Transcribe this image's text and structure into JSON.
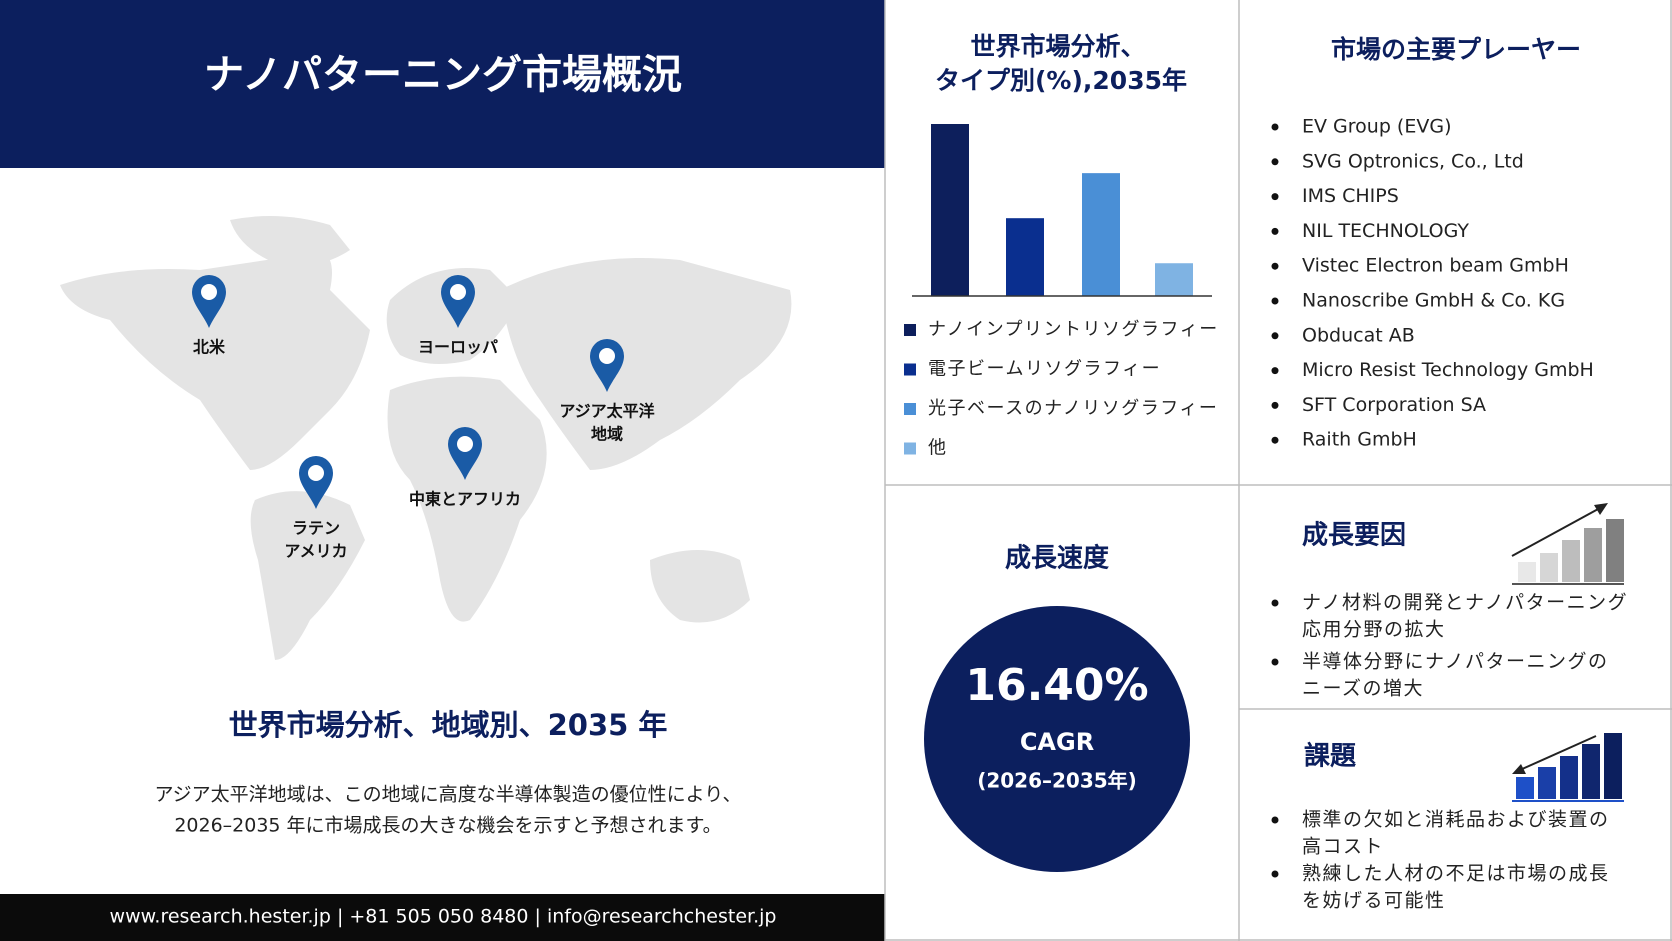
{
  "header": {
    "title": "ナノパターニング市場概況"
  },
  "map": {
    "regions": [
      {
        "lines": [
          "北米"
        ]
      },
      {
        "lines": [
          "ヨーロッパ"
        ]
      },
      {
        "lines": [
          "アジア太平洋",
          "地域"
        ]
      },
      {
        "lines": [
          "中東とアフリカ"
        ]
      },
      {
        "lines": [
          "ラテン",
          "アメリカ"
        ]
      }
    ]
  },
  "regional": {
    "title": "世界市場分析、地域別、2035 年",
    "description": [
      "アジア太平洋地域は、この地域に高度な半導体製造の優位性により、",
      "2026–2035 年に市場成長の大きな機会を示すと予想されます。"
    ]
  },
  "footer": {
    "text": "www.research.hester.jp | +81 505 050 8480 | info@researchchester.jp"
  },
  "chart_data": {
    "type": "bar",
    "title": [
      "世界市場分析、",
      "タイプ別(%),2035年"
    ],
    "categories": [
      "ナノインプリントリソグラフィー",
      "電子ビームリソグラフィー",
      "光子ベースのナノリソグラフィー",
      "他"
    ],
    "values": [
      42,
      19,
      30,
      8
    ],
    "colors": [
      "#0d1f5c",
      "#0a2f8f",
      "#4a8fd6",
      "#7fb3e3"
    ]
  },
  "players": {
    "title": "市場の主要プレーヤー",
    "items": [
      "EV Group (EVG)",
      "SVG Optronics, Co., Ltd",
      "IMS CHIPS",
      "NIL TECHNOLOGY",
      "Vistec Electron beam GmbH",
      "Nanoscribe GmbH & Co. KG",
      "Obducat AB",
      "Micro Resist Technology GmbH",
      "SFT Corporation SA",
      "Raith GmbH"
    ]
  },
  "growth_rate": {
    "title": "成長速度",
    "value": "16.40%",
    "label": "CAGR",
    "period": "(2026–2035年)"
  },
  "drivers": {
    "title": "成長要因",
    "items": [
      [
        "ナノ材料の開発とナノパターニング",
        "応用分野の拡大"
      ],
      [
        "半導体分野にナノパターニングの",
        "ニーズの増大"
      ]
    ]
  },
  "challenges": {
    "title": "課題",
    "items": [
      [
        "標準の欠如と消耗品および装置の",
        "高コスト"
      ],
      [
        "熟練した人材の不足は市場の成長",
        "を妨げる可能性"
      ]
    ]
  }
}
